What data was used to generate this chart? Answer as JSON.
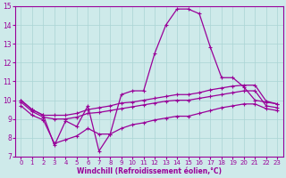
{
  "xlabel": "Windchill (Refroidissement éolien,°C)",
  "bg_color": "#ceeaea",
  "line_color": "#990099",
  "grid_color": "#aad4d4",
  "xlim": [
    -0.5,
    23.5
  ],
  "ylim": [
    7,
    15
  ],
  "xticks": [
    0,
    1,
    2,
    3,
    4,
    5,
    6,
    7,
    8,
    9,
    10,
    11,
    12,
    13,
    14,
    15,
    16,
    17,
    18,
    19,
    20,
    21,
    22,
    23
  ],
  "yticks": [
    7,
    8,
    9,
    10,
    11,
    12,
    13,
    14,
    15
  ],
  "line1_y": [
    10.0,
    9.5,
    9.2,
    7.6,
    8.9,
    8.6,
    9.7,
    7.3,
    8.2,
    10.3,
    10.5,
    10.5,
    12.5,
    14.0,
    14.85,
    14.85,
    14.6,
    12.8,
    11.2,
    11.2,
    10.7,
    10.0,
    9.9,
    9.8
  ],
  "line2_y": [
    10.0,
    9.5,
    9.2,
    9.2,
    9.2,
    9.3,
    9.5,
    9.6,
    9.7,
    9.85,
    9.9,
    10.0,
    10.1,
    10.2,
    10.3,
    10.3,
    10.4,
    10.55,
    10.65,
    10.75,
    10.8,
    10.8,
    9.95,
    9.8
  ],
  "line3_y": [
    9.9,
    9.4,
    9.1,
    9.0,
    9.0,
    9.1,
    9.3,
    9.35,
    9.45,
    9.55,
    9.65,
    9.75,
    9.85,
    9.95,
    10.0,
    10.0,
    10.1,
    10.2,
    10.3,
    10.4,
    10.5,
    10.5,
    9.7,
    9.6
  ],
  "line4_y": [
    9.7,
    9.2,
    8.95,
    7.7,
    7.9,
    8.1,
    8.5,
    8.2,
    8.2,
    8.5,
    8.7,
    8.8,
    8.95,
    9.05,
    9.15,
    9.15,
    9.3,
    9.45,
    9.6,
    9.7,
    9.8,
    9.8,
    9.55,
    9.45
  ]
}
